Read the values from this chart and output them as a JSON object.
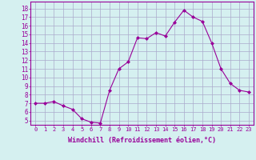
{
  "x": [
    0,
    1,
    2,
    3,
    4,
    5,
    6,
    7,
    8,
    9,
    10,
    11,
    12,
    13,
    14,
    15,
    16,
    17,
    18,
    19,
    20,
    21,
    22,
    23
  ],
  "y": [
    7.0,
    7.0,
    7.2,
    6.7,
    6.3,
    5.2,
    4.8,
    4.7,
    8.5,
    11.0,
    11.8,
    14.6,
    14.5,
    15.2,
    14.8,
    16.4,
    17.8,
    17.0,
    16.5,
    14.0,
    11.0,
    9.3,
    8.5,
    8.3
  ],
  "line_color": "#990099",
  "marker": "D",
  "marker_size": 2.0,
  "bg_color": "#d5f0f0",
  "grid_color": "#aaaacc",
  "xlabel": "Windchill (Refroidissement éolien,°C)",
  "ytick_vals": [
    5,
    6,
    7,
    8,
    9,
    10,
    11,
    12,
    13,
    14,
    15,
    16,
    17,
    18
  ],
  "xlim": [
    -0.5,
    23.5
  ],
  "ylim": [
    4.5,
    18.8
  ],
  "xtick_labels": [
    "0",
    "1",
    "2",
    "3",
    "4",
    "5",
    "6",
    "7",
    "8",
    "9",
    "10",
    "11",
    "12",
    "13",
    "14",
    "15",
    "16",
    "17",
    "18",
    "19",
    "20",
    "21",
    "22",
    "23"
  ],
  "label_color": "#990099",
  "tick_color": "#990099",
  "spine_color": "#990099"
}
